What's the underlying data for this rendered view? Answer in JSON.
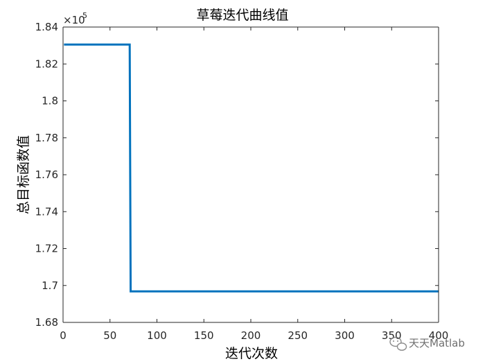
{
  "chart_data": {
    "type": "line",
    "title": "草莓迭代曲线值",
    "xlabel": "迭代次数",
    "ylabel": "总目标函数值",
    "xlim": [
      0,
      400
    ],
    "ylim": [
      168000,
      184000
    ],
    "x_ticks": [
      0,
      50,
      100,
      150,
      200,
      250,
      300,
      350,
      400
    ],
    "y_ticks": [
      168000,
      170000,
      172000,
      174000,
      176000,
      178000,
      180000,
      182000,
      184000
    ],
    "y_tick_labels": [
      "1.68",
      "1.7",
      "1.72",
      "1.74",
      "1.76",
      "1.78",
      "1.8",
      "1.82",
      "1.84"
    ],
    "y_exponent": {
      "base": "×10",
      "power": "5"
    },
    "grid": false,
    "series": [
      {
        "color": "#0072BD",
        "x": [
          1,
          71,
          72,
          400
        ],
        "y": [
          183050,
          183050,
          169680,
          169680
        ]
      }
    ]
  },
  "watermark": {
    "text": "天天Matlab",
    "icon": "wechat-icon"
  }
}
